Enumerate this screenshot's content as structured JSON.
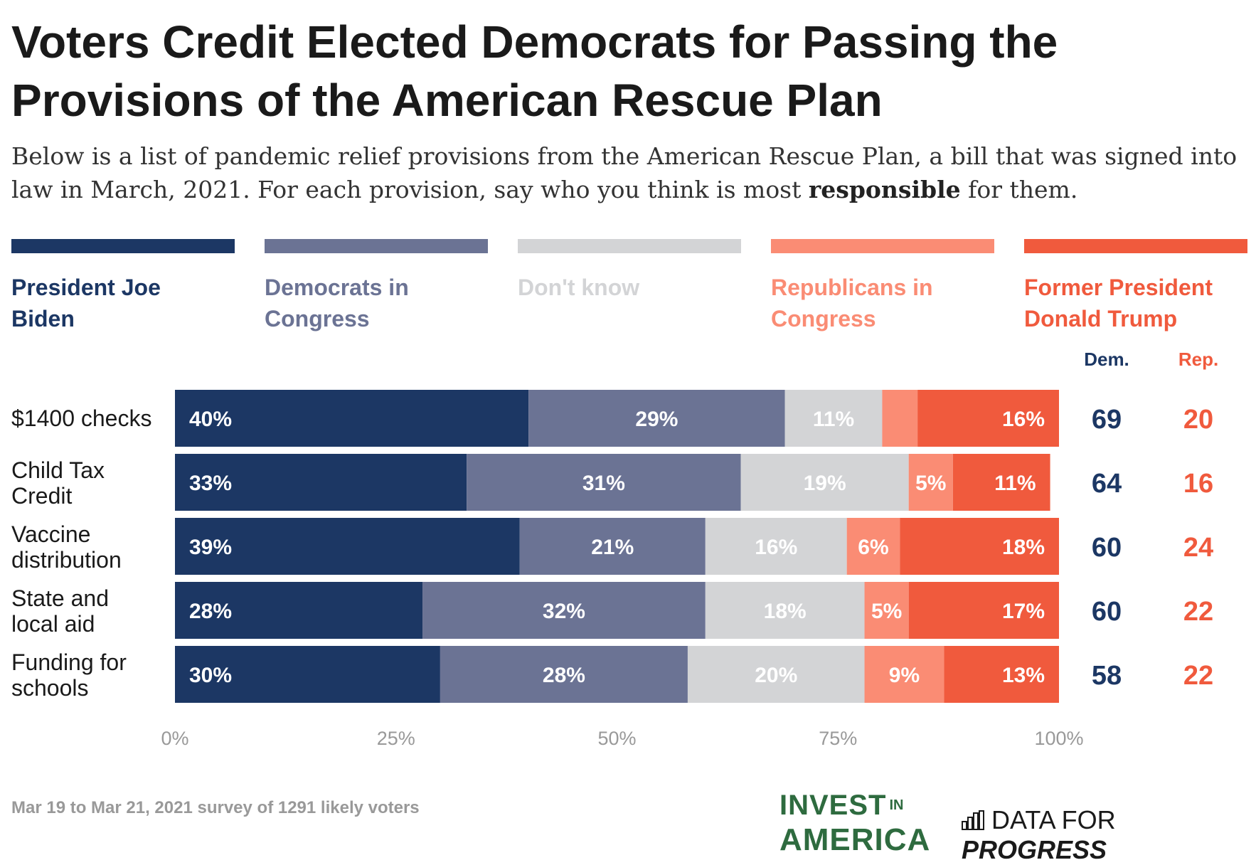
{
  "title_line1": "Voters Credit Elected Democrats for Passing the",
  "title_line2": "Provisions of the American Rescue Plan",
  "subtitle_part1": "Below is a list of pandemic relief provisions from the American Rescue Plan, a bill that was signed into law in March, 2021. For each provision, say who you think is most ",
  "subtitle_bold": "responsible",
  "subtitle_part2": " for them.",
  "legend": [
    {
      "label": "President Joe Biden",
      "color": "#1c3764"
    },
    {
      "label": "Democrats in Congress",
      "color": "#6b7394"
    },
    {
      "label": "Don't know",
      "color": "#d3d4d6"
    },
    {
      "label": "Republicans in Congress",
      "color": "#fa8c74"
    },
    {
      "label": "Former President Donald Trump",
      "color": "#f05a3d"
    }
  ],
  "net_headers": {
    "dem": "Dem.",
    "rep": "Rep."
  },
  "colors": {
    "dem_text": "#1c3764",
    "rep_text": "#f05a3d",
    "axis_text": "#999999"
  },
  "footer": "Mar 19 to Mar 21, 2021 survey of 1291 likely voters",
  "logos": {
    "invest_word1": "INVEST",
    "invest_word2": "IN",
    "invest_word3": "AMERICA",
    "dfp_word1": "DATA FOR",
    "dfp_word2": "PROGRESS"
  },
  "chart_data": {
    "type": "bar",
    "orientation": "horizontal",
    "stacked": true,
    "categories": [
      [
        "$1400 checks"
      ],
      [
        "Child Tax",
        "Credit"
      ],
      [
        "Vaccine",
        "distribution"
      ],
      [
        "State and",
        "local aid"
      ],
      [
        "Funding for",
        "schools"
      ]
    ],
    "series": [
      {
        "name": "President Joe Biden",
        "values": [
          40,
          33,
          39,
          28,
          30
        ],
        "labels": [
          "40%",
          "33%",
          "39%",
          "28%",
          "30%"
        ]
      },
      {
        "name": "Democrats in Congress",
        "values": [
          29,
          31,
          21,
          32,
          28
        ],
        "labels": [
          "29%",
          "31%",
          "21%",
          "32%",
          "28%"
        ]
      },
      {
        "name": "Don't know",
        "values": [
          11,
          19,
          16,
          18,
          20
        ],
        "labels": [
          "11%",
          "19%",
          "16%",
          "18%",
          "20%"
        ]
      },
      {
        "name": "Republicans in Congress",
        "values": [
          4,
          5,
          6,
          5,
          9
        ],
        "labels": [
          "",
          "5%",
          "6%",
          "5%",
          "9%"
        ]
      },
      {
        "name": "Former President Donald Trump",
        "values": [
          16,
          11,
          18,
          17,
          13
        ],
        "labels": [
          "16%",
          "11%",
          "18%",
          "17%",
          "13%"
        ]
      }
    ],
    "dem_totals": [
      69,
      64,
      60,
      60,
      58
    ],
    "rep_totals": [
      20,
      16,
      24,
      22,
      22
    ],
    "xlim": [
      0,
      100
    ],
    "xticks": [
      0,
      25,
      50,
      75,
      100
    ],
    "xtick_labels": [
      "0%",
      "25%",
      "50%",
      "75%",
      "100%"
    ],
    "label_colors": [
      "#ffffff",
      "#ffffff",
      "#ffffff",
      "#ffffff",
      "#ffffff"
    ]
  }
}
